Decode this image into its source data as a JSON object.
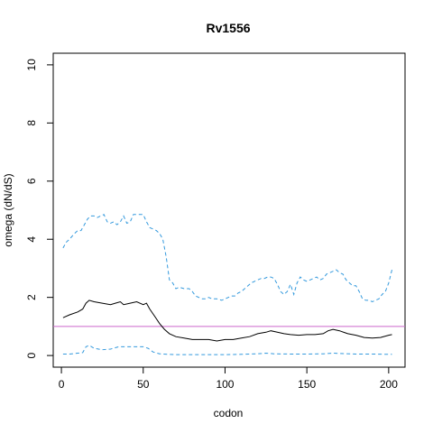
{
  "chart_data": {
    "type": "line",
    "title": "Rv1556",
    "xlabel": "codon",
    "ylabel": "omega (dN/dS)",
    "xlim": [
      -5,
      210
    ],
    "ylim": [
      -0.4,
      10.4
    ],
    "xticks": [
      0,
      50,
      100,
      150,
      200
    ],
    "yticks": [
      0,
      2,
      4,
      6,
      8,
      10
    ],
    "grid": false,
    "reference_line": {
      "y": 1,
      "color": "#cc66cc"
    },
    "series": [
      {
        "style": "dashed",
        "color": "#3399dd",
        "points": [
          [
            1,
            3.7
          ],
          [
            3,
            3.9
          ],
          [
            5,
            4.0
          ],
          [
            8,
            4.2
          ],
          [
            10,
            4.3
          ],
          [
            12,
            4.3
          ],
          [
            14,
            4.5
          ],
          [
            16,
            4.7
          ],
          [
            18,
            4.8
          ],
          [
            20,
            4.8
          ],
          [
            22,
            4.75
          ],
          [
            24,
            4.8
          ],
          [
            26,
            4.85
          ],
          [
            28,
            4.6
          ],
          [
            30,
            4.55
          ],
          [
            32,
            4.6
          ],
          [
            34,
            4.5
          ],
          [
            36,
            4.6
          ],
          [
            38,
            4.8
          ],
          [
            40,
            4.55
          ],
          [
            42,
            4.6
          ],
          [
            44,
            4.85
          ],
          [
            46,
            4.85
          ],
          [
            48,
            4.85
          ],
          [
            50,
            4.85
          ],
          [
            52,
            4.6
          ],
          [
            54,
            4.4
          ],
          [
            56,
            4.35
          ],
          [
            58,
            4.3
          ],
          [
            60,
            4.2
          ],
          [
            62,
            4.0
          ],
          [
            64,
            3.4
          ],
          [
            66,
            2.6
          ],
          [
            68,
            2.5
          ],
          [
            70,
            2.3
          ],
          [
            72,
            2.35
          ],
          [
            75,
            2.3
          ],
          [
            78,
            2.3
          ],
          [
            80,
            2.2
          ],
          [
            82,
            2.05
          ],
          [
            84,
            2.0
          ],
          [
            86,
            1.95
          ],
          [
            88,
            1.95
          ],
          [
            90,
            2.0
          ],
          [
            92,
            1.95
          ],
          [
            95,
            1.95
          ],
          [
            98,
            1.9
          ],
          [
            100,
            1.95
          ],
          [
            102,
            2.0
          ],
          [
            104,
            2.05
          ],
          [
            106,
            2.05
          ],
          [
            108,
            2.15
          ],
          [
            110,
            2.2
          ],
          [
            112,
            2.3
          ],
          [
            114,
            2.4
          ],
          [
            116,
            2.5
          ],
          [
            118,
            2.55
          ],
          [
            120,
            2.6
          ],
          [
            122,
            2.65
          ],
          [
            124,
            2.65
          ],
          [
            126,
            2.7
          ],
          [
            128,
            2.7
          ],
          [
            130,
            2.65
          ],
          [
            132,
            2.45
          ],
          [
            134,
            2.2
          ],
          [
            136,
            2.1
          ],
          [
            138,
            2.2
          ],
          [
            140,
            2.45
          ],
          [
            142,
            2.1
          ],
          [
            144,
            2.5
          ],
          [
            146,
            2.7
          ],
          [
            148,
            2.6
          ],
          [
            150,
            2.55
          ],
          [
            152,
            2.6
          ],
          [
            154,
            2.65
          ],
          [
            156,
            2.7
          ],
          [
            158,
            2.6
          ],
          [
            160,
            2.65
          ],
          [
            162,
            2.8
          ],
          [
            164,
            2.85
          ],
          [
            166,
            2.9
          ],
          [
            168,
            2.95
          ],
          [
            170,
            2.85
          ],
          [
            172,
            2.8
          ],
          [
            174,
            2.6
          ],
          [
            176,
            2.5
          ],
          [
            178,
            2.4
          ],
          [
            180,
            2.4
          ],
          [
            182,
            2.2
          ],
          [
            184,
            1.95
          ],
          [
            186,
            1.9
          ],
          [
            188,
            1.9
          ],
          [
            190,
            1.85
          ],
          [
            192,
            1.9
          ],
          [
            194,
            1.95
          ],
          [
            196,
            2.1
          ],
          [
            198,
            2.2
          ],
          [
            200,
            2.5
          ],
          [
            202,
            2.95
          ]
        ]
      },
      {
        "style": "solid",
        "color": "#000000",
        "points": [
          [
            1,
            1.3
          ],
          [
            5,
            1.4
          ],
          [
            10,
            1.5
          ],
          [
            13,
            1.6
          ],
          [
            15,
            1.8
          ],
          [
            17,
            1.9
          ],
          [
            20,
            1.85
          ],
          [
            25,
            1.8
          ],
          [
            30,
            1.75
          ],
          [
            33,
            1.8
          ],
          [
            36,
            1.85
          ],
          [
            38,
            1.75
          ],
          [
            42,
            1.8
          ],
          [
            46,
            1.85
          ],
          [
            50,
            1.75
          ],
          [
            52,
            1.8
          ],
          [
            54,
            1.6
          ],
          [
            57,
            1.35
          ],
          [
            60,
            1.1
          ],
          [
            63,
            0.9
          ],
          [
            66,
            0.75
          ],
          [
            70,
            0.65
          ],
          [
            75,
            0.6
          ],
          [
            80,
            0.55
          ],
          [
            85,
            0.55
          ],
          [
            90,
            0.55
          ],
          [
            95,
            0.5
          ],
          [
            100,
            0.55
          ],
          [
            105,
            0.55
          ],
          [
            110,
            0.6
          ],
          [
            115,
            0.65
          ],
          [
            120,
            0.75
          ],
          [
            125,
            0.8
          ],
          [
            128,
            0.85
          ],
          [
            132,
            0.8
          ],
          [
            136,
            0.75
          ],
          [
            140,
            0.72
          ],
          [
            145,
            0.7
          ],
          [
            150,
            0.72
          ],
          [
            155,
            0.72
          ],
          [
            160,
            0.75
          ],
          [
            163,
            0.85
          ],
          [
            166,
            0.9
          ],
          [
            170,
            0.85
          ],
          [
            175,
            0.75
          ],
          [
            180,
            0.7
          ],
          [
            185,
            0.62
          ],
          [
            190,
            0.6
          ],
          [
            195,
            0.62
          ],
          [
            200,
            0.7
          ],
          [
            202,
            0.72
          ]
        ]
      },
      {
        "style": "dashed",
        "color": "#3399dd",
        "points": [
          [
            1,
            0.05
          ],
          [
            5,
            0.05
          ],
          [
            10,
            0.08
          ],
          [
            13,
            0.1
          ],
          [
            15,
            0.3
          ],
          [
            17,
            0.35
          ],
          [
            20,
            0.25
          ],
          [
            25,
            0.2
          ],
          [
            30,
            0.22
          ],
          [
            35,
            0.3
          ],
          [
            40,
            0.3
          ],
          [
            45,
            0.3
          ],
          [
            50,
            0.3
          ],
          [
            53,
            0.25
          ],
          [
            56,
            0.12
          ],
          [
            60,
            0.06
          ],
          [
            65,
            0.04
          ],
          [
            70,
            0.03
          ],
          [
            80,
            0.03
          ],
          [
            90,
            0.03
          ],
          [
            100,
            0.03
          ],
          [
            110,
            0.04
          ],
          [
            120,
            0.06
          ],
          [
            125,
            0.08
          ],
          [
            130,
            0.06
          ],
          [
            140,
            0.05
          ],
          [
            150,
            0.05
          ],
          [
            160,
            0.06
          ],
          [
            166,
            0.08
          ],
          [
            170,
            0.07
          ],
          [
            180,
            0.05
          ],
          [
            190,
            0.05
          ],
          [
            200,
            0.04
          ],
          [
            202,
            0.04
          ]
        ]
      }
    ]
  }
}
